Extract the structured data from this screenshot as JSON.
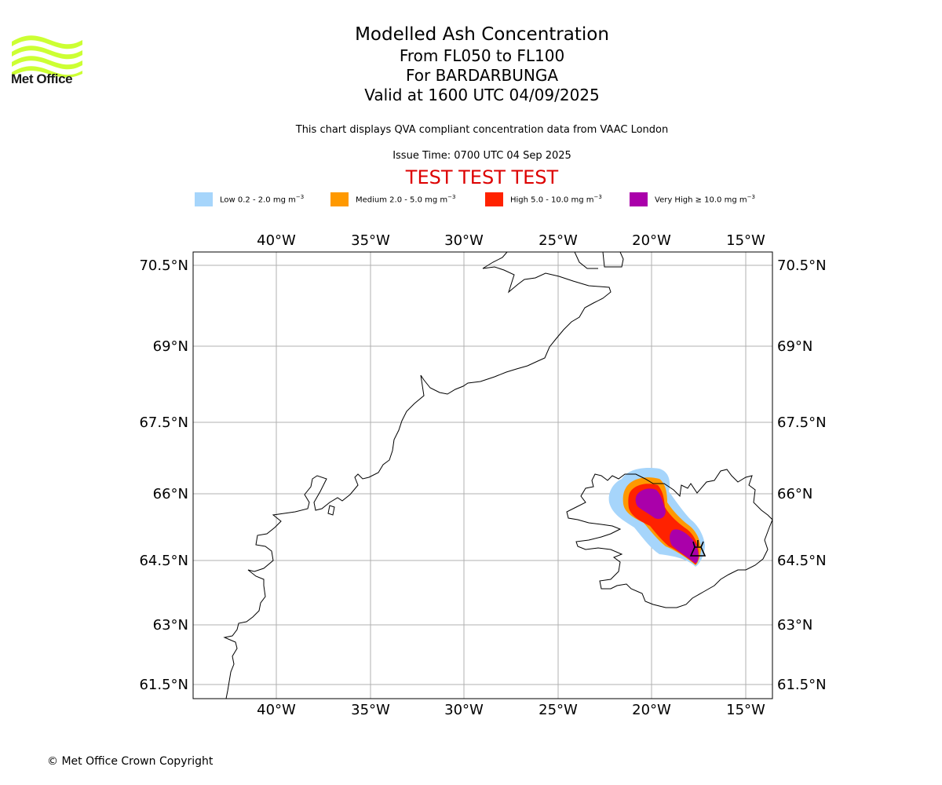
{
  "header": {
    "title": "Modelled Ash Concentration",
    "level_range": "From FL050 to FL100",
    "volcano": "For BARDARBUNGA",
    "valid_time": "Valid at 1600 UTC 04/09/2025",
    "qva_note": "This chart displays QVA compliant concentration data from VAAC London",
    "issue_time": "Issue Time: 0700 UTC 04 Sep 2025",
    "test_banner": "TEST TEST TEST"
  },
  "logo": {
    "text": "Met Office",
    "color": "#ccff33"
  },
  "legend": [
    {
      "label": "Low 0.2 - 2.0 mg m",
      "color": "#a6d5fb"
    },
    {
      "label": "Medium 2.0 - 5.0 mg m",
      "color": "#ff9900"
    },
    {
      "label": "High 5.0 - 10.0 mg m",
      "color": "#ff2200"
    },
    {
      "label": "Very High ≥ 10.0 mg m",
      "color": "#aa00aa"
    }
  ],
  "legend_unit_exponent": "−3",
  "map": {
    "lon_ticks": [
      "40°W",
      "35°W",
      "30°W",
      "25°W",
      "20°W",
      "15°W"
    ],
    "lat_ticks": [
      "70.5°N",
      "69°N",
      "67.5°N",
      "66°N",
      "64.5°N",
      "63°N",
      "61.5°N"
    ],
    "gridlines": true,
    "volcano_marker": "volcano-icon",
    "volcano_position": {
      "lon": -17.5,
      "lat": 64.6
    }
  },
  "footer": {
    "copyright": "© Met Office Crown Copyright"
  }
}
